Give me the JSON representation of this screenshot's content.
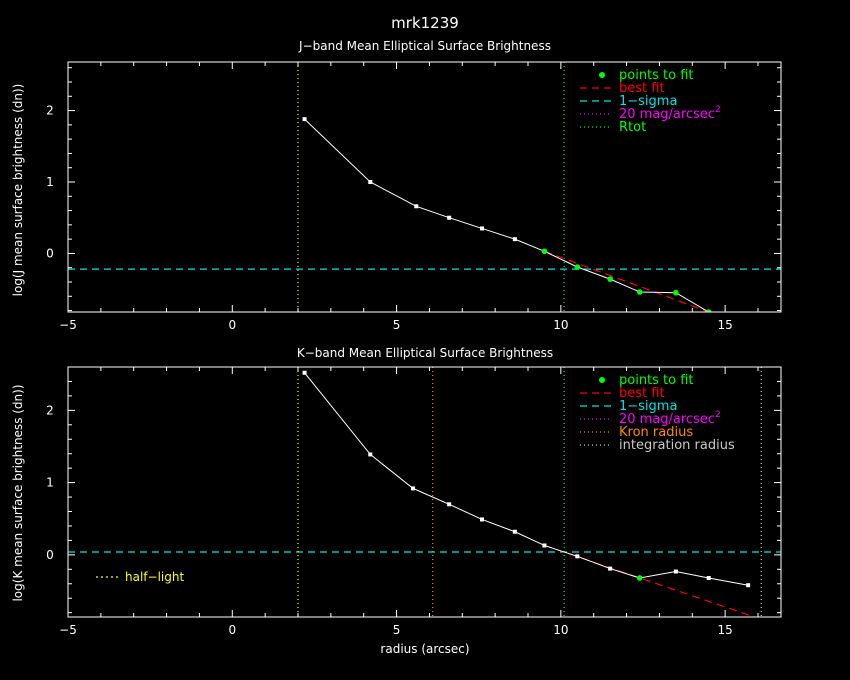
{
  "title": "mrk1239",
  "colors": {
    "background": "#000000",
    "axes": "#ffffff",
    "data": "#ffffff",
    "fit_points": "#00ff00",
    "best_fit": "#ff0000",
    "sigma": "#00e5e5",
    "mag20": "#ff00ff",
    "rtot": "#00ff00",
    "kron": "#ff8c00",
    "integration": "#c8c8c8",
    "half_light": "#ffff00"
  },
  "chart_data": [
    {
      "type": "line",
      "title": "J−band Mean Elliptical Surface Brightness",
      "xlabel": "",
      "ylabel": "log(J mean surface brightness (dn))",
      "xlim": [
        -5,
        16.7
      ],
      "ylim": [
        -0.82,
        2.68
      ],
      "xticks": [
        -5,
        0,
        5,
        10,
        15
      ],
      "yticks": [
        0,
        1,
        2
      ],
      "xtick_labels": [
        "−5",
        "0",
        "5",
        "10",
        "15"
      ],
      "ytick_labels": [
        "0",
        "1",
        "2"
      ],
      "series": [
        {
          "name": "data",
          "x": [
            2.2,
            4.2,
            5.6,
            6.6,
            7.6,
            8.6,
            9.5,
            10.5,
            11.5,
            12.4,
            13.5,
            14.5
          ],
          "y": [
            1.88,
            1.0,
            0.66,
            0.5,
            0.35,
            0.2,
            0.03,
            -0.19,
            -0.36,
            -0.54,
            -0.55,
            -0.82
          ]
        },
        {
          "name": "points to fit",
          "x": [
            9.5,
            10.5,
            11.5,
            12.4,
            13.5,
            14.5
          ],
          "y": [
            0.03,
            -0.19,
            -0.36,
            -0.54,
            -0.55,
            -0.82
          ]
        },
        {
          "name": "best fit",
          "x": [
            9.5,
            14.5
          ],
          "y": [
            0.03,
            -0.82
          ]
        }
      ],
      "hlines": [
        {
          "name": "1−sigma",
          "y": -0.22
        }
      ],
      "vlines": [
        {
          "name": "half-light",
          "x": 2.0
        },
        {
          "name": "Rtot",
          "x": 10.1
        }
      ],
      "legend": {
        "position": "top-right",
        "entries": [
          {
            "label": "points to fit",
            "style": "points",
            "color": "#00ff00"
          },
          {
            "label": "best fit",
            "style": "dashed",
            "color": "#ff0000"
          },
          {
            "label": "1−sigma",
            "style": "dashed",
            "color": "#00e5e5"
          },
          {
            "label": "20 mag/arcsec",
            "sup": "2",
            "style": "dotted",
            "color": "#ff00ff"
          },
          {
            "label": "Rtot",
            "style": "dotted",
            "color": "#00ff00"
          }
        ]
      }
    },
    {
      "type": "line",
      "title": "K−band Mean Elliptical Surface Brightness",
      "xlabel": "radius (arcsec)",
      "ylabel": "log(K mean surface brightness (dn))",
      "xlim": [
        -5,
        16.7
      ],
      "ylim": [
        -0.86,
        2.6
      ],
      "xticks": [
        -5,
        0,
        5,
        10,
        15
      ],
      "yticks": [
        0,
        1,
        2
      ],
      "xtick_labels": [
        "−5",
        "0",
        "5",
        "10",
        "15"
      ],
      "ytick_labels": [
        "0",
        "1",
        "2"
      ],
      "series": [
        {
          "name": "data",
          "x": [
            2.2,
            4.2,
            5.5,
            6.6,
            7.6,
            8.6,
            9.5,
            10.5,
            11.5,
            12.4,
            13.5,
            14.5,
            15.7
          ],
          "y": [
            2.52,
            1.39,
            0.92,
            0.7,
            0.49,
            0.32,
            0.13,
            -0.02,
            -0.19,
            -0.32,
            -0.23,
            -0.32,
            -0.42
          ]
        },
        {
          "name": "points to fit",
          "x": [
            12.4
          ],
          "y": [
            -0.32
          ]
        },
        {
          "name": "best fit",
          "x": [
            9.5,
            15.9
          ],
          "y": [
            0.13,
            -0.86
          ]
        }
      ],
      "hlines": [
        {
          "name": "1−sigma",
          "y": 0.04
        }
      ],
      "vlines": [
        {
          "name": "half-light",
          "x": 2.0
        },
        {
          "name": "Kron radius",
          "x": 6.1
        },
        {
          "name": "Rtot",
          "x": 10.1
        },
        {
          "name": "integration radius",
          "x": 16.1
        }
      ],
      "legend": {
        "position": "top-right",
        "entries": [
          {
            "label": "points to fit",
            "style": "points",
            "color": "#00ff00"
          },
          {
            "label": "best fit",
            "style": "dashed",
            "color": "#ff0000"
          },
          {
            "label": "1−sigma",
            "style": "dashed",
            "color": "#00e5e5"
          },
          {
            "label": "20 mag/arcsec",
            "sup": "2",
            "style": "dotted",
            "color": "#ff00ff"
          },
          {
            "label": "Kron radius",
            "style": "dotted",
            "color": "#ff8c00"
          },
          {
            "label": "integration radius",
            "style": "dotted",
            "color": "#c8c8c8"
          }
        ]
      },
      "annotation": {
        "label": "half−light",
        "style": "dotted",
        "color": "#ffff00"
      }
    }
  ]
}
